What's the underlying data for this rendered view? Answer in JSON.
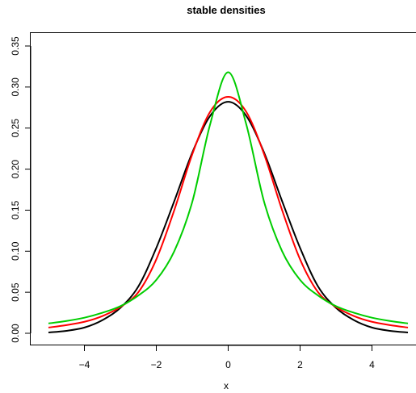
{
  "chart_data": {
    "type": "line",
    "title": "stable densities",
    "xlabel": "x",
    "ylabel": "",
    "xlim": [
      -5,
      5
    ],
    "ylim": [
      0,
      0.35
    ],
    "x_ticks": [
      -4,
      -2,
      0,
      2,
      4
    ],
    "x_tick_labels": [
      "−4",
      "−2",
      "0",
      "2",
      "4"
    ],
    "y_ticks": [
      0,
      0.05,
      0.1,
      0.15,
      0.2,
      0.25,
      0.3,
      0.35
    ],
    "y_tick_labels": [
      "0.00",
      "0.05",
      "0.10",
      "0.15",
      "0.20",
      "0.25",
      "0.30",
      "0.35"
    ],
    "grid": false,
    "legend": "none",
    "x": [
      -5,
      -4.5,
      -4,
      -3.5,
      -3,
      -2.5,
      -2,
      -1.5,
      -1,
      -0.5,
      0,
      0.5,
      1,
      1.5,
      2,
      2.5,
      3,
      3.5,
      4,
      4.5,
      5
    ],
    "series": [
      {
        "color": "#000000",
        "values": [
          0.001,
          0.003,
          0.007,
          0.016,
          0.031,
          0.057,
          0.104,
          0.161,
          0.22,
          0.265,
          0.282,
          0.265,
          0.22,
          0.161,
          0.104,
          0.057,
          0.031,
          0.016,
          0.007,
          0.003,
          0.001
        ]
      },
      {
        "color": "#ff0000",
        "values": [
          0.007,
          0.01,
          0.014,
          0.021,
          0.032,
          0.05,
          0.09,
          0.15,
          0.218,
          0.27,
          0.288,
          0.27,
          0.218,
          0.15,
          0.09,
          0.05,
          0.032,
          0.021,
          0.014,
          0.01,
          0.007
        ]
      },
      {
        "color": "#00cd00",
        "values": [
          0.012,
          0.015,
          0.019,
          0.025,
          0.033,
          0.046,
          0.065,
          0.1,
          0.16,
          0.255,
          0.318,
          0.255,
          0.16,
          0.1,
          0.065,
          0.046,
          0.033,
          0.025,
          0.019,
          0.015,
          0.012
        ]
      }
    ]
  }
}
